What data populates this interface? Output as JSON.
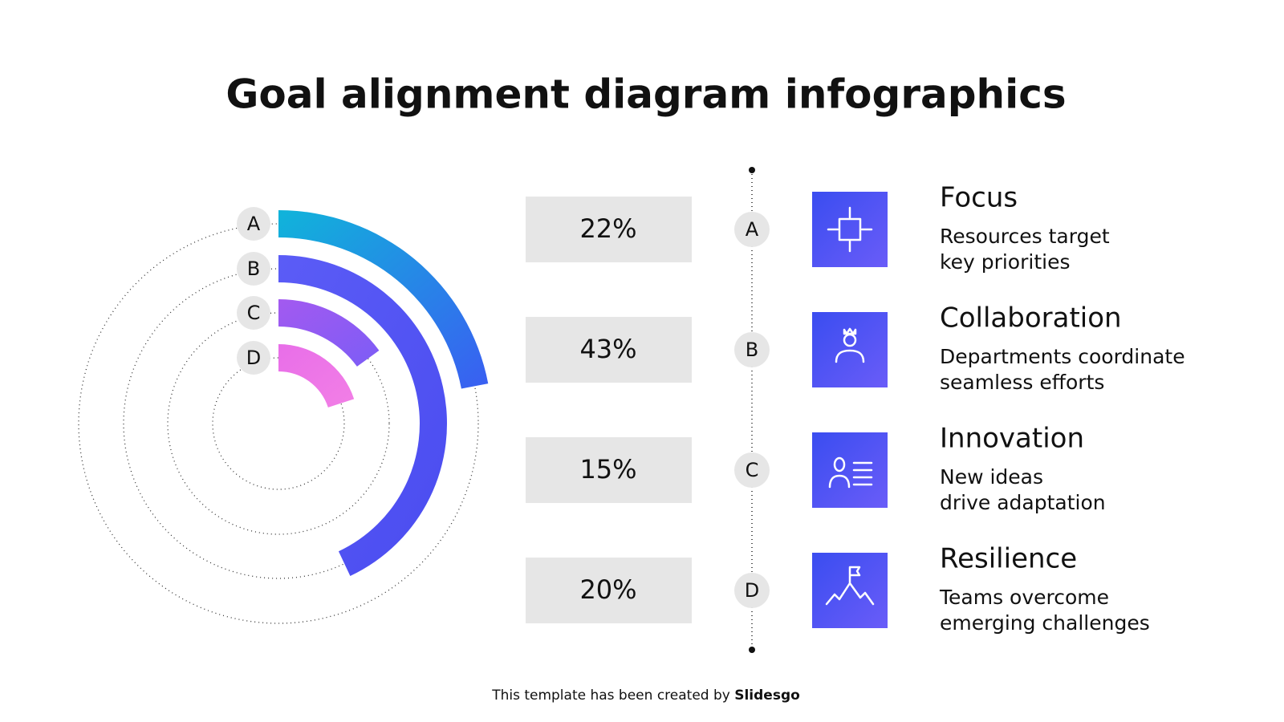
{
  "title": "Goal alignment diagram infographics",
  "items": [
    {
      "letter": "A",
      "value": 22,
      "value_label": "22%",
      "title": "Focus",
      "desc": [
        "Resources target",
        "key priorities"
      ],
      "color": [
        "#10b4da",
        "#3a5ef2"
      ]
    },
    {
      "letter": "B",
      "value": 43,
      "value_label": "43%",
      "title": "Collaboration",
      "desc": [
        "Departments coordinate",
        "seamless efforts"
      ],
      "color": [
        "#5b5cf6",
        "#4a4cf0"
      ]
    },
    {
      "letter": "C",
      "value": 15,
      "value_label": "15%",
      "title": "Innovation",
      "desc": [
        "New ideas",
        "drive adaptation"
      ],
      "color": [
        "#a35af0",
        "#7c5cf6"
      ]
    },
    {
      "letter": "D",
      "value": 20,
      "value_label": "20%",
      "title": "Resilience",
      "desc": [
        "Teams overcome",
        "emerging challenges"
      ],
      "color": [
        "#e86ee8",
        "#f27fe6"
      ]
    }
  ],
  "footer": {
    "text": "This template has been created by",
    "brand": "Slidesgo"
  }
}
